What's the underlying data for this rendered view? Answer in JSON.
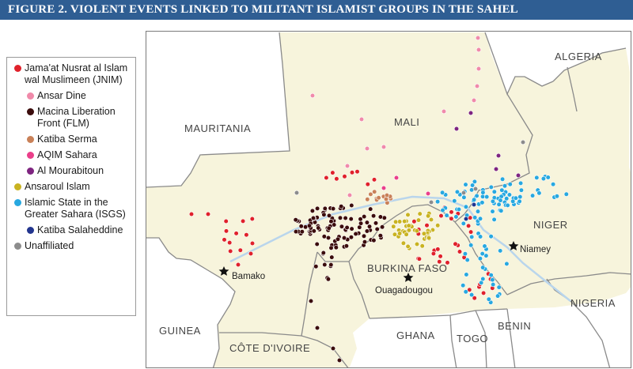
{
  "title": "FIGURE 2. VIOLENT EVENTS LINKED TO MILITANT ISLAMIST GROUPS IN THE SAHEL",
  "legend": [
    {
      "label": "Jama'at Nusrat al Islam wal Muslimeen (JNIM)",
      "color": "#e0212b",
      "sub": false
    },
    {
      "label": "Ansar Dine",
      "color": "#f08aaa",
      "sub": true
    },
    {
      "label": "Macina Liberation Front (FLM)",
      "color": "#3b0c0c",
      "sub": true
    },
    {
      "label": "Katiba Serma",
      "color": "#c98158",
      "sub": true
    },
    {
      "label": "AQIM Sahara",
      "color": "#ea3f8a",
      "sub": true
    },
    {
      "label": "Al Mourabitoun",
      "color": "#7e2480",
      "sub": true
    },
    {
      "label": "Ansaroul Islam",
      "color": "#c9b321",
      "sub": false
    },
    {
      "label": "Islamic State in the Greater Sahara (ISGS)",
      "color": "#27a8e0",
      "sub": false
    },
    {
      "label": "Katiba Salaheddine",
      "color": "#22358e",
      "sub": true
    },
    {
      "label": "Unaffiliated",
      "color": "#8c8c8c",
      "sub": false
    }
  ],
  "countries": {
    "algeria": "ALGERIA",
    "mauritania": "MAURITANIA",
    "mali": "MALI",
    "niger": "NIGER",
    "burkina_faso": "BURKINA FASO",
    "nigeria": "NIGERIA",
    "guinea": "GUINEA",
    "cote_divoire": "CÔTE D'IVOIRE",
    "ghana": "GHANA",
    "togo": "TOGO",
    "benin": "BENIN"
  },
  "cities": {
    "bamako": "Bamako",
    "niamey": "Niamey",
    "ouagadougou": "Ouagadougou"
  },
  "colors": {
    "sahel_fill": "#f7f4dc",
    "other_fill": "#ffffff",
    "border": "#8a8a8a",
    "water": "#b9d5ec"
  },
  "icons": {
    "capital": "star-icon",
    "event": "dot-icon"
  }
}
